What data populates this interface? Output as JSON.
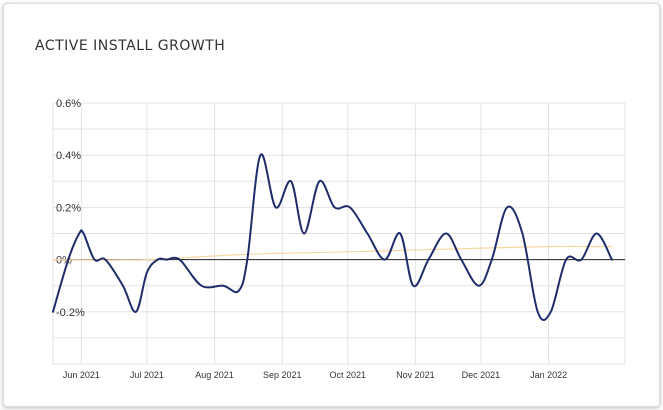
{
  "chart_data": {
    "type": "line",
    "title": "ACTIVE INSTALL GROWTH",
    "y_unit": "%",
    "ylim": [
      -0.4,
      0.6
    ],
    "yticks": [
      -0.2,
      0,
      0.2,
      0.4,
      0.6
    ],
    "ytick_labels": [
      "-0.2%",
      "0%",
      "0.2%",
      "0.4%",
      "0.6%"
    ],
    "xlim": [
      "2021-05-19",
      "2022-02-05"
    ],
    "xticks": [
      "2021-06-01",
      "2021-07-01",
      "2021-08-01",
      "2021-09-01",
      "2021-10-01",
      "2021-11-01",
      "2021-12-01",
      "2022-01-01"
    ],
    "xtick_labels": [
      "Jun 2021",
      "Jul 2021",
      "Aug 2021",
      "Sep 2021",
      "Oct 2021",
      "Nov 2021",
      "Dec 2021",
      "Jan 2022"
    ],
    "grid": true,
    "legend": "none",
    "series": [
      {
        "color": "#1f2d6b",
        "points": [
          [
            "2021-05-19",
            -0.2
          ],
          [
            "2021-05-26",
            0.0
          ],
          [
            "2021-05-31",
            0.1
          ],
          [
            "2021-06-02",
            0.1
          ],
          [
            "2021-06-07",
            0.0
          ],
          [
            "2021-06-12",
            0.0
          ],
          [
            "2021-06-20",
            -0.1
          ],
          [
            "2021-06-26",
            -0.2
          ],
          [
            "2021-07-01",
            -0.05
          ],
          [
            "2021-07-06",
            0.0
          ],
          [
            "2021-07-10",
            0.0
          ],
          [
            "2021-07-16",
            0.0
          ],
          [
            "2021-07-26",
            -0.1
          ],
          [
            "2021-08-05",
            -0.1
          ],
          [
            "2021-08-12",
            -0.12
          ],
          [
            "2021-08-16",
            0.0
          ],
          [
            "2021-08-22",
            0.4
          ],
          [
            "2021-08-29",
            0.2
          ],
          [
            "2021-09-05",
            0.3
          ],
          [
            "2021-09-11",
            0.1
          ],
          [
            "2021-09-18",
            0.3
          ],
          [
            "2021-09-25",
            0.2
          ],
          [
            "2021-10-02",
            0.2
          ],
          [
            "2021-10-10",
            0.1
          ],
          [
            "2021-10-18",
            0.0
          ],
          [
            "2021-10-25",
            0.1
          ],
          [
            "2021-10-31",
            -0.1
          ],
          [
            "2021-11-07",
            0.0
          ],
          [
            "2021-11-15",
            0.1
          ],
          [
            "2021-11-22",
            0.0
          ],
          [
            "2021-11-30",
            -0.1
          ],
          [
            "2021-12-06",
            0.0
          ],
          [
            "2021-12-13",
            0.2
          ],
          [
            "2021-12-20",
            0.1
          ],
          [
            "2021-12-27",
            -0.2
          ],
          [
            "2022-01-02",
            -0.2
          ],
          [
            "2022-01-09",
            0.0
          ],
          [
            "2022-01-16",
            0.0
          ],
          [
            "2022-01-23",
            0.1
          ],
          [
            "2022-01-30",
            0.0
          ]
        ]
      },
      {
        "color": "#f7d7a0",
        "points": [
          [
            "2021-05-19",
            0.0
          ],
          [
            "2021-07-01",
            0.0
          ],
          [
            "2021-08-15",
            0.02
          ],
          [
            "2021-10-01",
            0.03
          ],
          [
            "2021-11-15",
            0.04
          ],
          [
            "2021-12-31",
            0.05
          ],
          [
            "2022-01-30",
            0.05
          ]
        ]
      }
    ]
  }
}
